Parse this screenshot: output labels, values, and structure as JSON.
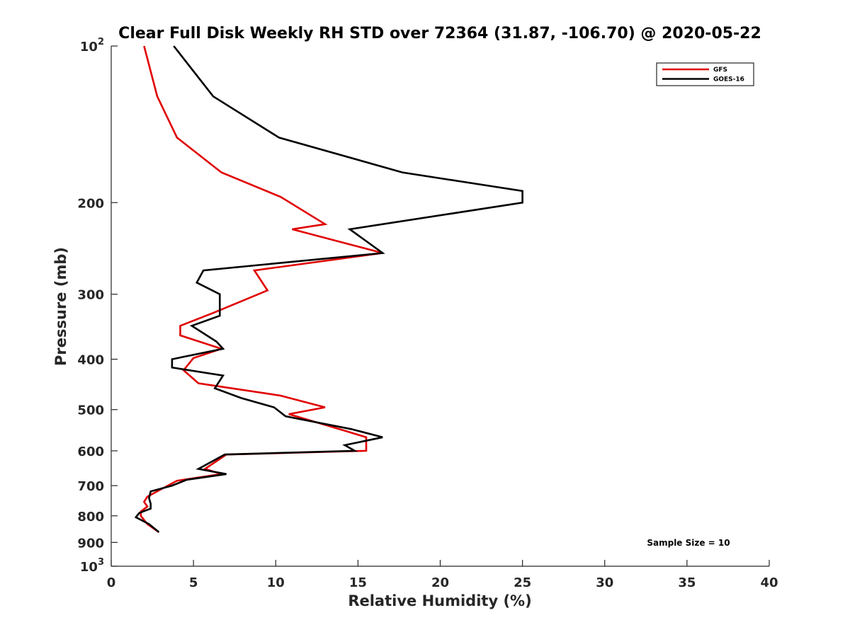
{
  "chart_data": {
    "type": "line",
    "title": "Clear Full Disk Weekly RH STD over 72364 (31.87, -106.70) @ 2020-05-22",
    "xlabel": "Relative Humidity (%)",
    "ylabel": "Pressure (mb)",
    "xlim": [
      0,
      40
    ],
    "ylim": [
      100,
      1000
    ],
    "y_scale": "log",
    "y_reversed": true,
    "grid": false,
    "legend_position": "top-right",
    "x_ticks": [
      0,
      5,
      10,
      15,
      20,
      25,
      30,
      35,
      40
    ],
    "x_tick_labels": [
      "0",
      "5",
      "10",
      "15",
      "20",
      "25",
      "30",
      "35",
      "40"
    ],
    "y_ticks": [
      {
        "value": 100,
        "base": "10",
        "exp": "2"
      },
      {
        "value": 200,
        "label": "200"
      },
      {
        "value": 300,
        "label": "300"
      },
      {
        "value": 400,
        "label": "400"
      },
      {
        "value": 500,
        "label": "500"
      },
      {
        "value": 600,
        "label": "600"
      },
      {
        "value": 700,
        "label": "700"
      },
      {
        "value": 800,
        "label": "800"
      },
      {
        "value": 900,
        "label": "900"
      },
      {
        "value": 1000,
        "base": "10",
        "exp": "3"
      }
    ],
    "annotation": "Sample Size = 10",
    "series": [
      {
        "name": "GFS",
        "color": "#e00000",
        "points": [
          [
            2.0,
            100
          ],
          [
            2.8,
            125
          ],
          [
            4.0,
            150
          ],
          [
            6.7,
            175
          ],
          [
            10.3,
            195
          ],
          [
            13.0,
            220
          ],
          [
            11.0,
            225
          ],
          [
            16.5,
            250
          ],
          [
            8.7,
            270
          ],
          [
            9.5,
            295
          ],
          [
            6.3,
            325
          ],
          [
            4.2,
            345
          ],
          [
            4.2,
            360
          ],
          [
            6.7,
            382
          ],
          [
            5.0,
            398
          ],
          [
            4.4,
            420
          ],
          [
            5.3,
            445
          ],
          [
            10.3,
            470
          ],
          [
            13.0,
            495
          ],
          [
            10.8,
            510
          ],
          [
            14.3,
            550
          ],
          [
            15.5,
            565
          ],
          [
            15.5,
            600
          ],
          [
            7.0,
            610
          ],
          [
            5.7,
            650
          ],
          [
            6.7,
            665
          ],
          [
            4.0,
            685
          ],
          [
            3.0,
            712
          ],
          [
            2.2,
            735
          ],
          [
            2.0,
            752
          ],
          [
            2.2,
            768
          ],
          [
            1.8,
            785
          ],
          [
            1.8,
            800
          ],
          [
            2.2,
            830
          ],
          [
            2.9,
            860
          ]
        ]
      },
      {
        "name": "GOES-16",
        "color": "#000000",
        "points": [
          [
            3.8,
            100
          ],
          [
            6.2,
            125
          ],
          [
            10.2,
            150
          ],
          [
            17.7,
            175
          ],
          [
            25.0,
            190
          ],
          [
            25.0,
            200
          ],
          [
            14.5,
            225
          ],
          [
            16.5,
            250
          ],
          [
            5.6,
            270
          ],
          [
            5.2,
            285
          ],
          [
            6.6,
            300
          ],
          [
            6.6,
            330
          ],
          [
            4.9,
            345
          ],
          [
            6.4,
            370
          ],
          [
            6.8,
            382
          ],
          [
            3.7,
            400
          ],
          [
            3.7,
            415
          ],
          [
            6.8,
            430
          ],
          [
            6.3,
            455
          ],
          [
            7.9,
            475
          ],
          [
            9.9,
            495
          ],
          [
            10.6,
            515
          ],
          [
            14.6,
            545
          ],
          [
            16.5,
            565
          ],
          [
            14.2,
            585
          ],
          [
            14.8,
            600
          ],
          [
            6.9,
            610
          ],
          [
            5.3,
            650
          ],
          [
            7.0,
            665
          ],
          [
            4.6,
            682
          ],
          [
            3.7,
            700
          ],
          [
            2.4,
            718
          ],
          [
            2.3,
            740
          ],
          [
            2.4,
            758
          ],
          [
            2.4,
            775
          ],
          [
            1.7,
            790
          ],
          [
            1.5,
            805
          ],
          [
            2.3,
            830
          ],
          [
            2.9,
            860
          ]
        ]
      }
    ]
  }
}
